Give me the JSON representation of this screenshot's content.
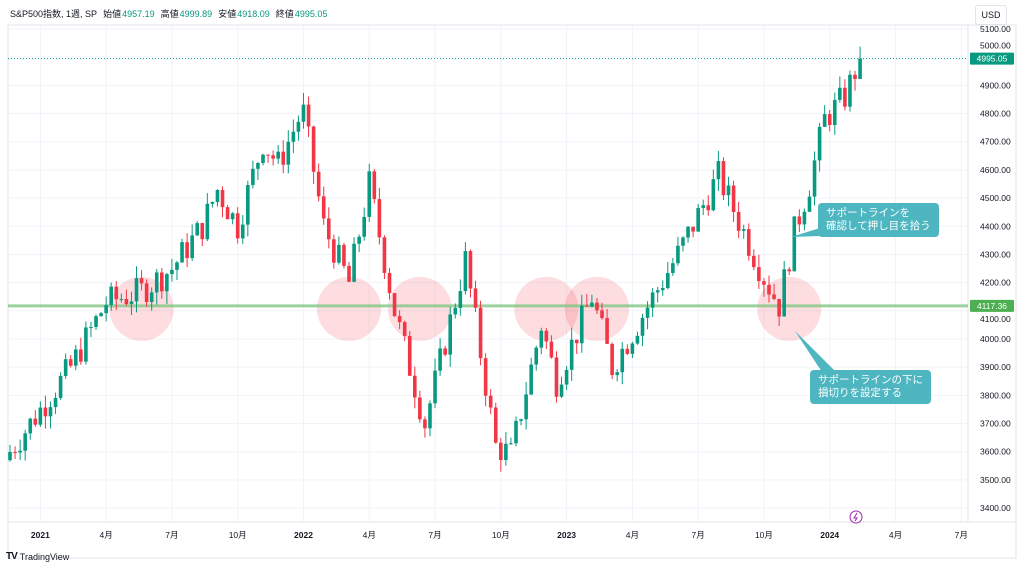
{
  "header": {
    "symbol": "S&P500指数, 1週, SP",
    "open_label": "始値",
    "open": "4957.19",
    "high_label": "高値",
    "high": "4999.89",
    "low_label": "安値",
    "low": "4918.09",
    "close_label": "終値",
    "close": "4995.05",
    "currency_button": "USD"
  },
  "footer": {
    "brand": "TradingView"
  },
  "annotations": {
    "upper": "サポートラインを\n確認して押し目を拾う",
    "lower": "サポートラインの下に\n損切りを設定する"
  },
  "chart_data": {
    "type": "candlestick",
    "title": "S&P500指数, 1週, SP",
    "interval": "weekly",
    "ylim": [
      3400,
      5100
    ],
    "y_ticks": [
      "5100.00",
      "5000.00",
      "4900.00",
      "4800.00",
      "4700.00",
      "4600.00",
      "4500.00",
      "4400.00",
      "4300.00",
      "4200.00",
      "4100.00",
      "4000.00",
      "3900.00",
      "3800.00",
      "3700.00",
      "3600.00",
      "3500.00",
      "3400.00"
    ],
    "x_ticks": [
      {
        "label": "2021",
        "week": 6,
        "bold": true
      },
      {
        "label": "4月",
        "week": 19
      },
      {
        "label": "7月",
        "week": 32
      },
      {
        "label": "10月",
        "week": 45
      },
      {
        "label": "2022",
        "week": 58,
        "bold": true
      },
      {
        "label": "4月",
        "week": 71
      },
      {
        "label": "7月",
        "week": 84
      },
      {
        "label": "10月",
        "week": 97
      },
      {
        "label": "2023",
        "week": 110,
        "bold": true
      },
      {
        "label": "4月",
        "week": 123
      },
      {
        "label": "7月",
        "week": 136
      },
      {
        "label": "10月",
        "week": 149
      },
      {
        "label": "2024",
        "week": 162,
        "bold": true
      },
      {
        "label": "4月",
        "week": 175
      },
      {
        "label": "7月",
        "week": 188
      }
    ],
    "close_keypoints": [
      [
        0,
        3600
      ],
      [
        6,
        3750
      ],
      [
        12,
        3900
      ],
      [
        19,
        4130
      ],
      [
        26,
        4170
      ],
      [
        32,
        4250
      ],
      [
        38,
        4400
      ],
      [
        41,
        4530
      ],
      [
        45,
        4400
      ],
      [
        50,
        4700
      ],
      [
        53,
        4620
      ],
      [
        57,
        4780
      ],
      [
        58,
        4800
      ],
      [
        62,
        4400
      ],
      [
        67,
        4200
      ],
      [
        71,
        4550
      ],
      [
        76,
        4100
      ],
      [
        82,
        3700
      ],
      [
        90,
        4280
      ],
      [
        96,
        3620
      ],
      [
        99,
        3590
      ],
      [
        105,
        4050
      ],
      [
        108,
        3850
      ],
      [
        115,
        4150
      ],
      [
        119,
        3900
      ],
      [
        132,
        4300
      ],
      [
        140,
        4580
      ],
      [
        149,
        4220
      ],
      [
        152,
        4120
      ],
      [
        155,
        4380
      ],
      [
        158,
        4550
      ],
      [
        161,
        4780
      ],
      [
        165,
        4860
      ],
      [
        168,
        4995.05
      ]
    ],
    "last_price": "4995.05",
    "support_level": "4117.36",
    "support_touches_weeks": [
      26,
      67,
      81,
      106,
      116,
      154
    ],
    "colors": {
      "up": "#089981",
      "down": "#f23645",
      "support": "#81c784",
      "highlight": "#f23645",
      "callout": "#4db6c0"
    }
  }
}
